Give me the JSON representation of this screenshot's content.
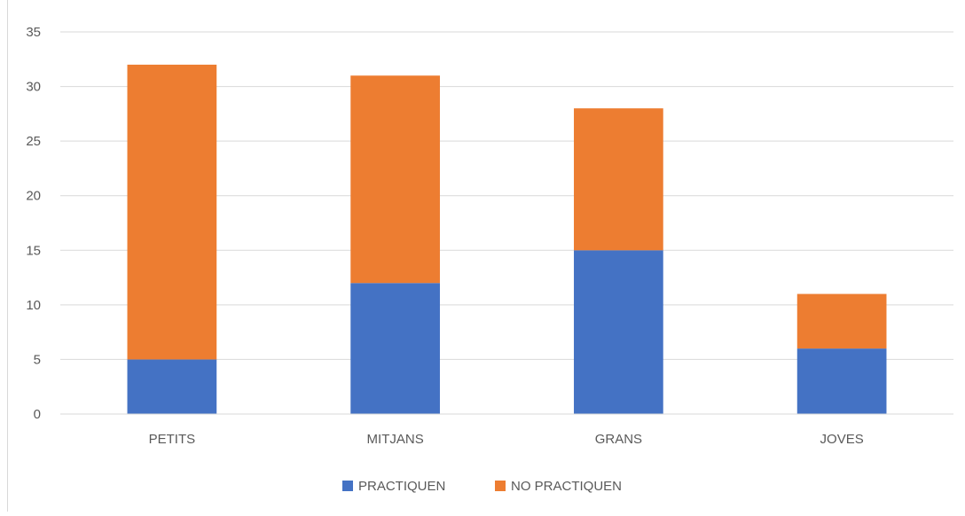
{
  "chart_data": {
    "type": "bar",
    "stacked": true,
    "categories": [
      "PETITS",
      "MITJANS",
      "GRANS",
      "JOVES"
    ],
    "series": [
      {
        "name": "PRACTIQUEN",
        "color": "#4472c4",
        "values": [
          5,
          12,
          15,
          6
        ]
      },
      {
        "name": "NO PRACTIQUEN",
        "color": "#ed7d31",
        "values": [
          27,
          19,
          13,
          5
        ]
      }
    ],
    "ylim": [
      0,
      35
    ],
    "y_ticks": [
      0,
      5,
      10,
      15,
      20,
      25,
      30,
      35
    ],
    "y_tick_labels": [
      "0",
      "5",
      "10",
      "15",
      "20",
      "25",
      "30",
      "35"
    ],
    "grid": true,
    "legend_position": "bottom",
    "title": "",
    "xlabel": "",
    "ylabel": ""
  }
}
